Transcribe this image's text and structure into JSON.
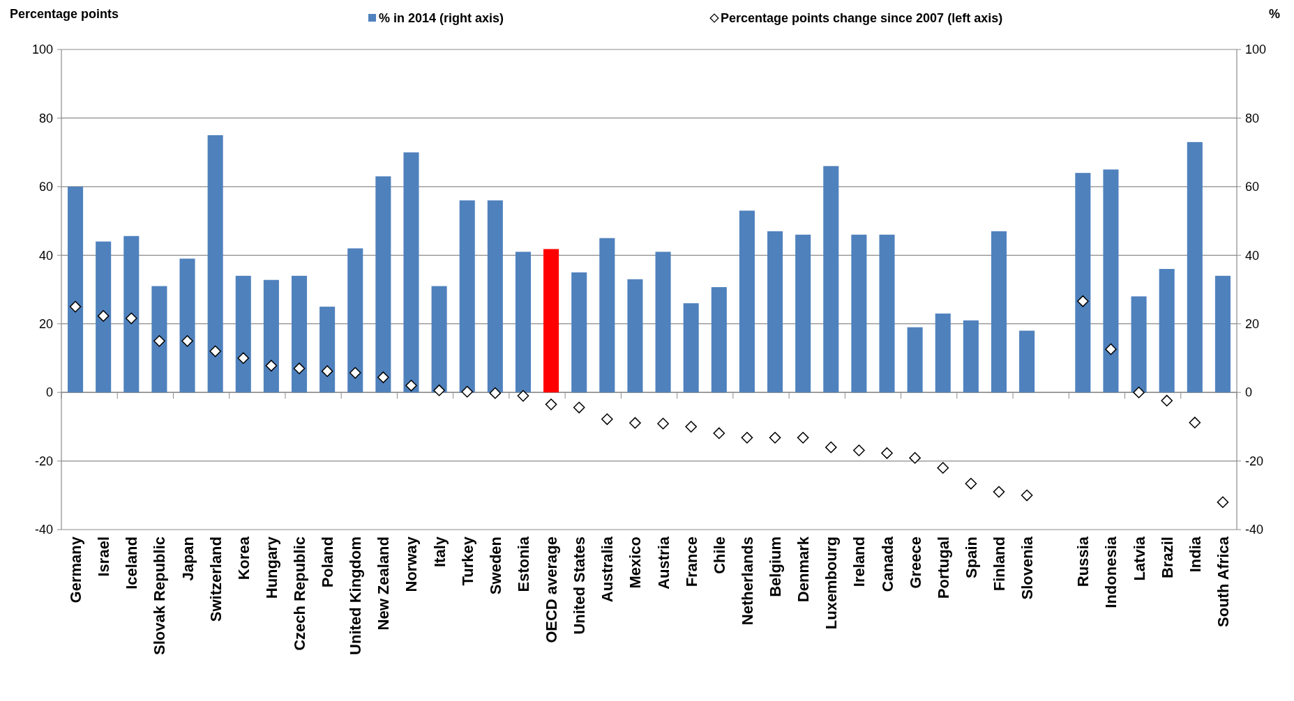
{
  "chart_data": {
    "type": "bar",
    "ylabel": "Percentage points",
    "y2label": "%",
    "categories": [
      "Germany",
      "Israel",
      "Iceland",
      "Slovak Republic",
      "Japan",
      "Switzerland",
      "Korea",
      "Hungary",
      "Czech Republic",
      "Poland",
      "United Kingdom",
      "New Zealand",
      "Norway",
      "Italy",
      "Turkey",
      "Sweden",
      "Estonia",
      "OECD average",
      "United States",
      "Australia",
      "Mexico",
      "Austria",
      "France",
      "Chile",
      "Netherlands",
      "Belgium",
      "Denmark",
      "Luxembourg",
      "Ireland",
      "Canada",
      "Greece",
      "Portugal",
      "Spain",
      "Finland",
      "Slovenia",
      null,
      "Russia",
      "Indonesia",
      "Latvia",
      "Brazil",
      "India",
      "South Africa"
    ],
    "series": [
      {
        "name": "% in 2014 (right axis)",
        "axis": "y2",
        "color": "#4f81bd",
        "colors": [
          "#4f81bd",
          "#4f81bd",
          "#4f81bd",
          "#4f81bd",
          "#4f81bd",
          "#4f81bd",
          "#4f81bd",
          "#4f81bd",
          "#4f81bd",
          "#4f81bd",
          "#4f81bd",
          "#4f81bd",
          "#4f81bd",
          "#4f81bd",
          "#4f81bd",
          "#4f81bd",
          "#4f81bd",
          "#ff0000",
          "#4f81bd",
          "#4f81bd",
          "#4f81bd",
          "#4f81bd",
          "#4f81bd",
          "#4f81bd",
          "#4f81bd",
          "#4f81bd",
          "#4f81bd",
          "#4f81bd",
          "#4f81bd",
          "#4f81bd",
          "#4f81bd",
          "#4f81bd",
          "#4f81bd",
          "#4f81bd",
          "#4f81bd",
          "#4f81bd",
          "#4f81bd",
          "#4f81bd",
          "#4f81bd",
          "#4f81bd",
          "#4f81bd",
          "#4f81bd"
        ],
        "values": [
          60,
          44,
          45.6,
          31,
          39,
          75,
          34,
          32.8,
          34,
          25,
          42,
          63,
          70,
          31,
          56,
          56,
          41,
          41.8,
          35,
          45,
          33,
          41,
          26,
          30.7,
          53,
          47,
          46,
          66,
          46,
          46,
          19,
          23,
          21,
          47,
          18,
          null,
          64,
          65,
          28,
          36,
          73,
          34
        ]
      },
      {
        "name": "Percentage points change since 2007 (left axis)",
        "type": "scatter",
        "marker": "diamond",
        "color": "#ffffff",
        "values": [
          25,
          22.3,
          21.6,
          15,
          15,
          12,
          10,
          7.8,
          7,
          6.2,
          5.7,
          4.4,
          2,
          0.6,
          0.2,
          -0.2,
          -1,
          -3.5,
          -4.4,
          -7.8,
          -8.9,
          -9.1,
          -10,
          -11.9,
          -13.2,
          -13.2,
          -13.2,
          -16,
          -16.9,
          -17.7,
          -19.1,
          -22,
          -26.6,
          -29,
          -30,
          null,
          26.6,
          12.6,
          0,
          -2.4,
          -8.8,
          -32
        ]
      }
    ],
    "ylim": [
      -40,
      100
    ],
    "yticks": [
      -40,
      -20,
      0,
      20,
      40,
      60,
      80,
      100
    ],
    "y2lim": [
      -40,
      100
    ],
    "y2ticks": [
      -40,
      -20,
      0,
      20,
      40,
      60,
      80,
      100
    ],
    "grid": "y",
    "legend": "top"
  }
}
